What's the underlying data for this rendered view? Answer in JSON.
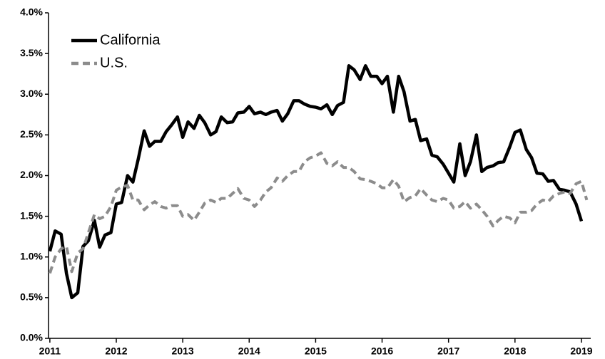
{
  "chart_data": {
    "type": "line",
    "x": [
      2011,
      2011.08,
      2011.17,
      2011.25,
      2011.33,
      2011.42,
      2011.5,
      2011.58,
      2011.67,
      2011.75,
      2011.83,
      2011.92,
      2012,
      2012.08,
      2012.17,
      2012.25,
      2012.33,
      2012.42,
      2012.5,
      2012.58,
      2012.67,
      2012.75,
      2012.83,
      2012.92,
      2013,
      2013.08,
      2013.17,
      2013.25,
      2013.33,
      2013.42,
      2013.5,
      2013.58,
      2013.67,
      2013.75,
      2013.83,
      2013.92,
      2014,
      2014.08,
      2014.17,
      2014.25,
      2014.33,
      2014.42,
      2014.5,
      2014.58,
      2014.67,
      2014.75,
      2014.83,
      2014.92,
      2015,
      2015.08,
      2015.17,
      2015.25,
      2015.33,
      2015.42,
      2015.5,
      2015.58,
      2015.67,
      2015.75,
      2015.83,
      2015.92,
      2016,
      2016.08,
      2016.17,
      2016.25,
      2016.33,
      2016.42,
      2016.5,
      2016.58,
      2016.67,
      2016.75,
      2016.83,
      2016.92,
      2017,
      2017.08,
      2017.17,
      2017.25,
      2017.33,
      2017.42,
      2017.5,
      2017.58,
      2017.67,
      2017.75,
      2017.83,
      2017.92,
      2018,
      2018.08,
      2018.17,
      2018.25,
      2018.33,
      2018.42,
      2018.5,
      2018.58,
      2018.67,
      2018.75,
      2018.83,
      2018.92,
      2019,
      2019.08
    ],
    "series": [
      {
        "name": "California",
        "color": "#000000",
        "dashed": false,
        "values": [
          1.07,
          1.32,
          1.28,
          0.8,
          0.5,
          0.56,
          1.13,
          1.2,
          1.45,
          1.12,
          1.27,
          1.3,
          1.65,
          1.67,
          2.0,
          1.92,
          2.2,
          2.55,
          2.36,
          2.42,
          2.42,
          2.54,
          2.62,
          2.72,
          2.47,
          2.66,
          2.58,
          2.74,
          2.65,
          2.5,
          2.54,
          2.72,
          2.65,
          2.66,
          2.77,
          2.78,
          2.85,
          2.76,
          2.78,
          2.75,
          2.78,
          2.8,
          2.67,
          2.76,
          2.92,
          2.92,
          2.88,
          2.85,
          2.84,
          2.82,
          2.87,
          2.75,
          2.86,
          2.9,
          3.35,
          3.3,
          3.18,
          3.35,
          3.22,
          3.22,
          3.13,
          3.22,
          2.78,
          3.22,
          3.03,
          2.67,
          2.69,
          2.43,
          2.45,
          2.25,
          2.23,
          2.14,
          2.03,
          1.92,
          2.39,
          2.0,
          2.17,
          2.5,
          2.05,
          2.1,
          2.12,
          2.16,
          2.17,
          2.35,
          2.53,
          2.56,
          2.32,
          2.22,
          2.03,
          2.02,
          1.93,
          1.94,
          1.83,
          1.82,
          1.8,
          1.65,
          1.44,
          null
        ]
      },
      {
        "name": "U.S.",
        "color": "#8c8c8c",
        "dashed": true,
        "values": [
          0.8,
          1.0,
          1.1,
          1.13,
          0.82,
          1.05,
          1.1,
          1.3,
          1.52,
          1.47,
          1.5,
          1.62,
          1.82,
          1.86,
          1.88,
          1.7,
          1.7,
          1.58,
          1.64,
          1.68,
          1.62,
          1.6,
          1.63,
          1.63,
          1.5,
          1.52,
          1.45,
          1.55,
          1.66,
          1.7,
          1.67,
          1.72,
          1.72,
          1.78,
          1.84,
          1.72,
          1.7,
          1.62,
          1.7,
          1.8,
          1.85,
          1.97,
          1.93,
          2.0,
          2.05,
          2.05,
          2.17,
          2.22,
          2.24,
          2.28,
          2.15,
          2.12,
          2.17,
          2.1,
          2.1,
          2.05,
          1.96,
          1.95,
          1.93,
          1.9,
          1.85,
          1.85,
          1.95,
          1.87,
          1.68,
          1.73,
          1.75,
          1.84,
          1.76,
          1.7,
          1.68,
          1.72,
          1.7,
          1.6,
          1.62,
          1.68,
          1.6,
          1.65,
          1.58,
          1.5,
          1.38,
          1.45,
          1.5,
          1.48,
          1.42,
          1.55,
          1.55,
          1.57,
          1.65,
          1.7,
          1.68,
          1.75,
          1.78,
          1.8,
          1.78,
          1.9,
          1.93,
          1.7
        ]
      }
    ],
    "xlim": [
      2010.98,
      2019.14
    ],
    "xticks": [
      2011,
      2012,
      2013,
      2014,
      2015,
      2016,
      2017,
      2018,
      2019
    ],
    "ylim": [
      0,
      4
    ],
    "yticks": [
      {
        "value": 0,
        "label": "0.0%"
      },
      {
        "value": 0.5,
        "label": "0.5%"
      },
      {
        "value": 1,
        "label": "1.0%"
      },
      {
        "value": 1.5,
        "label": "1.5%"
      },
      {
        "value": 2,
        "label": "2.0%"
      },
      {
        "value": 2.5,
        "label": "2.5%"
      },
      {
        "value": 3,
        "label": "3.0%"
      },
      {
        "value": 3.5,
        "label": "3.5%"
      },
      {
        "value": 4,
        "label": "4.0%"
      }
    ],
    "grid": false,
    "legend": "top-left"
  }
}
